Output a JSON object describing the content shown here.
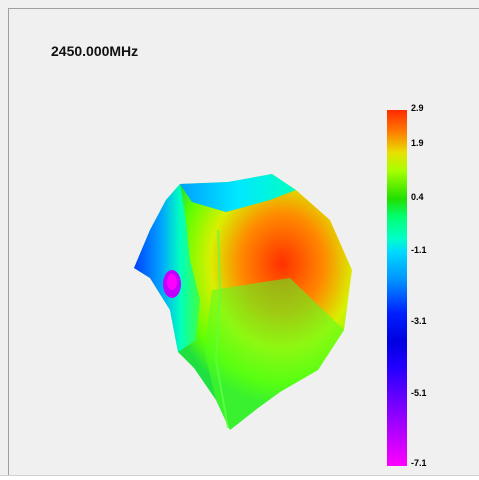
{
  "header": {
    "frequency": "2450.000MHz"
  },
  "legend": {
    "ticks": [
      "2.9",
      "1.9",
      "0.4",
      "-1.1",
      "-3.1",
      "-5.1",
      "-7.1"
    ],
    "colors": {
      "max": "#ff2a00",
      "high": "#e8e000",
      "mid_high": "#20e000",
      "mid": "#00d8ff",
      "low": "#0000e0",
      "min": "#ff00ff"
    }
  }
}
